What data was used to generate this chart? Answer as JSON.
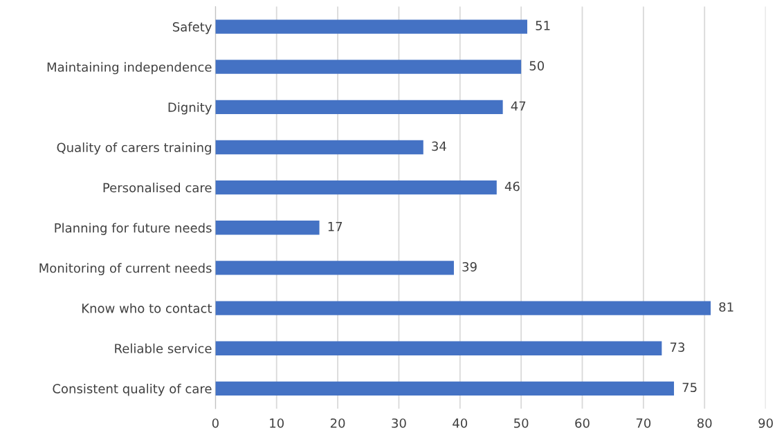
{
  "chart_data": {
    "type": "bar",
    "orientation": "horizontal",
    "categories": [
      "Safety",
      "Maintaining independence",
      "Dignity",
      "Quality of carers training",
      "Personalised care",
      "Planning for future needs",
      "Monitoring of current needs",
      "Know who to contact",
      "Reliable service",
      "Consistent quality of care"
    ],
    "values": [
      51,
      50,
      47,
      34,
      46,
      17,
      39,
      81,
      73,
      75
    ],
    "color": "#4472c4",
    "xlim": [
      0,
      90
    ],
    "xticks": [
      0,
      10,
      20,
      30,
      40,
      50,
      60,
      70,
      80,
      90
    ],
    "grid": "x",
    "data_labels": true
  }
}
